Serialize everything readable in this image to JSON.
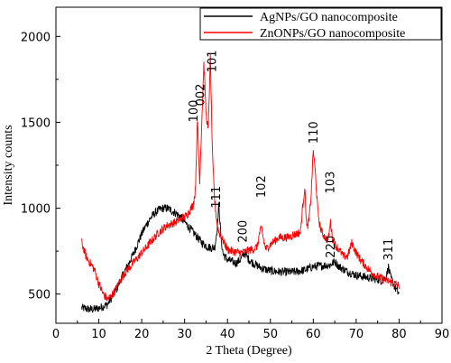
{
  "chart_data": {
    "type": "line",
    "title": "",
    "xlabel": "2 Theta (Degree)",
    "ylabel": "Intensity counts",
    "xlim": [
      0,
      90
    ],
    "ylim": [
      330,
      2170
    ],
    "x_ticks": [
      "0",
      "10",
      "20",
      "30",
      "40",
      "50",
      "60",
      "70",
      "80",
      "90"
    ],
    "y_ticks": [
      "500",
      "1000",
      "1500",
      "2000"
    ],
    "grid": false,
    "legend_position": "top-right",
    "series": [
      {
        "name": "AgNPs/GO nanocomposite",
        "color": "#000000",
        "x": [
          6,
          7,
          8,
          9,
          10,
          11,
          12,
          13,
          14,
          15,
          16,
          17,
          18,
          19,
          20,
          21,
          22,
          23,
          24,
          25,
          26,
          27,
          28,
          29,
          30,
          31,
          32,
          33,
          34,
          35,
          36,
          37,
          37.5,
          38,
          38.5,
          39,
          40,
          41,
          42,
          43,
          44,
          45,
          46,
          48,
          50,
          52,
          54,
          56,
          58,
          60,
          62,
          64,
          65,
          66,
          68,
          70,
          72,
          74,
          76,
          77,
          77.5,
          78,
          79,
          80
        ],
        "y": [
          420,
          415,
          410,
          412,
          418,
          428,
          440,
          480,
          520,
          580,
          630,
          680,
          730,
          790,
          850,
          900,
          940,
          970,
          990,
          1000,
          1000,
          985,
          970,
          950,
          920,
          890,
          860,
          830,
          800,
          780,
          770,
          770,
          860,
          1020,
          820,
          730,
          700,
          690,
          680,
          700,
          740,
          700,
          680,
          650,
          635,
          630,
          628,
          630,
          640,
          660,
          665,
          670,
          690,
          660,
          630,
          610,
          600,
          590,
          580,
          600,
          660,
          600,
          540,
          500
        ]
      },
      {
        "name": "ZnONPs/GO nanocomposite",
        "color": "#ff0000",
        "x": [
          6,
          7,
          8,
          9,
          10,
          11,
          12,
          13,
          14,
          15,
          16,
          17,
          18,
          19,
          20,
          21,
          22,
          23,
          24,
          25,
          26,
          27,
          28,
          29,
          30,
          30.5,
          31,
          31.5,
          32,
          32.5,
          33,
          33.5,
          34,
          34.5,
          35,
          35.5,
          36,
          36.5,
          37,
          37.5,
          38,
          39,
          40,
          41,
          42,
          43,
          44,
          45,
          46,
          47,
          47.5,
          48,
          48.5,
          49,
          50,
          51,
          52,
          53,
          54,
          55,
          56,
          57,
          57.5,
          58,
          58.5,
          59,
          59.5,
          60,
          60.5,
          61,
          61.5,
          62,
          63,
          63.5,
          64,
          64.5,
          65,
          66,
          67,
          68,
          68.5,
          69,
          70,
          71,
          72,
          73,
          74,
          75,
          76,
          77,
          78,
          79,
          80
        ],
        "y": [
          800,
          720,
          680,
          640,
          560,
          500,
          470,
          490,
          530,
          580,
          620,
          650,
          680,
          710,
          740,
          770,
          800,
          830,
          860,
          880,
          900,
          910,
          920,
          935,
          950,
          960,
          980,
          1000,
          1020,
          1100,
          1520,
          1150,
          1500,
          1850,
          1550,
          1450,
          1880,
          1300,
          1050,
          920,
          860,
          810,
          760,
          750,
          745,
          740,
          745,
          755,
          760,
          780,
          860,
          880,
          800,
          760,
          790,
          810,
          830,
          830,
          830,
          840,
          850,
          860,
          1000,
          1120,
          880,
          930,
          1080,
          1340,
          1200,
          1000,
          900,
          860,
          820,
          820,
          920,
          820,
          790,
          760,
          720,
          720,
          760,
          800,
          740,
          700,
          670,
          640,
          620,
          600,
          590,
          580,
          570,
          560,
          550
        ]
      }
    ],
    "annotations": [
      {
        "text": "100",
        "x": 33,
        "y": 1500
      },
      {
        "text": "002",
        "x": 34.6,
        "y": 1595
      },
      {
        "text": "101",
        "x": 37.3,
        "y": 1790
      },
      {
        "text": "111",
        "x": 38.3,
        "y": 1000
      },
      {
        "text": "200",
        "x": 44.5,
        "y": 800
      },
      {
        "text": "102",
        "x": 48.8,
        "y": 1060
      },
      {
        "text": "110",
        "x": 61,
        "y": 1375
      },
      {
        "text": "103",
        "x": 64.9,
        "y": 1085
      },
      {
        "text": "220",
        "x": 65,
        "y": 710
      },
      {
        "text": "311",
        "x": 78.4,
        "y": 695
      }
    ]
  }
}
